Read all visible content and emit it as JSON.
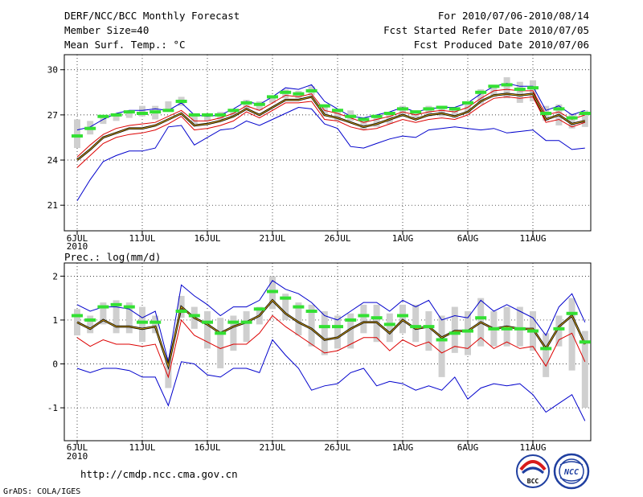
{
  "header": {
    "title": "DERF/NCC/BCC Monthly Forecast",
    "member_size": "Member Size=40",
    "variable": "Mean Surf. Temp.: °C",
    "forecast_period": "For 2010/07/06-2010/08/14",
    "start_ref_date": "Fcst Started Refer Date 2010/07/05",
    "produced_date": "Fcst Produced Date 2010/07/06"
  },
  "footer": {
    "url": "http://cmdp.ncc.cma.gov.cn",
    "grads_credit": "GrADS: COLA/IGES",
    "logo_bcc_text": "BCC",
    "logo_ncc_text": "NCC"
  },
  "x_axis": {
    "tick_labels": [
      "6JUL",
      "11JUL",
      "16JUL",
      "21JUL",
      "26JUL",
      "1AUG",
      "6AUG",
      "11AUG"
    ],
    "year_label": "2010"
  },
  "colors": {
    "box": "#cfcfcf",
    "member_mean": "#000000",
    "ensemble_mean": "#d4a017",
    "observed_marker": "#33e033",
    "upper_blue": "#0000cc",
    "lower_red": "#dd0000",
    "lower_blue": "#0000cc"
  },
  "chart_data": [
    {
      "type": "line",
      "title": "Mean Surf. Temp.: °C",
      "days": 40,
      "ylim": [
        19.3,
        31
      ],
      "yticks": [
        21,
        24,
        27,
        30
      ],
      "y_tick_labels": [
        "21",
        "24",
        "27",
        "30"
      ],
      "grid": true,
      "series": [
        {
          "name": "upper_blue",
          "values": [
            26.0,
            26.2,
            26.7,
            27.1,
            27.3,
            27.3,
            27.4,
            27.3,
            27.8,
            27.0,
            26.9,
            27.0,
            27.4,
            27.9,
            27.7,
            28.2,
            28.8,
            28.7,
            29.0,
            27.9,
            27.4,
            26.9,
            26.8,
            27.0,
            27.2,
            27.5,
            27.2,
            27.4,
            27.5,
            27.5,
            27.8,
            28.4,
            28.9,
            29.1,
            28.9,
            28.9,
            27.3,
            27.6,
            27.0,
            27.3
          ]
        },
        {
          "name": "upper_red",
          "values": [
            24.2,
            25.0,
            25.7,
            26.1,
            26.3,
            26.4,
            26.5,
            26.9,
            27.3,
            26.6,
            26.6,
            26.8,
            27.1,
            27.6,
            27.3,
            27.8,
            28.3,
            28.2,
            28.4,
            27.3,
            27.1,
            26.8,
            26.5,
            26.7,
            26.9,
            27.2,
            27.0,
            27.2,
            27.3,
            27.2,
            27.5,
            28.1,
            28.6,
            28.7,
            28.6,
            28.6,
            27.0,
            27.2,
            26.7,
            27.0
          ]
        },
        {
          "name": "mean_black",
          "values": [
            24.0,
            24.7,
            25.5,
            25.8,
            26.1,
            26.1,
            26.3,
            26.7,
            27.1,
            26.3,
            26.4,
            26.6,
            26.9,
            27.4,
            27.0,
            27.5,
            28.0,
            28.0,
            28.2,
            27.0,
            26.8,
            26.5,
            26.2,
            26.4,
            26.7,
            27.0,
            26.7,
            27.0,
            27.1,
            26.9,
            27.2,
            27.9,
            28.3,
            28.4,
            28.3,
            28.4,
            26.7,
            27.0,
            26.4,
            26.6
          ]
        },
        {
          "name": "mean_yellow",
          "values": [
            24.0,
            24.7,
            25.5,
            25.8,
            26.1,
            26.1,
            26.3,
            26.7,
            27.1,
            26.3,
            26.4,
            26.6,
            26.9,
            27.4,
            27.0,
            27.5,
            28.0,
            28.0,
            28.2,
            27.0,
            26.8,
            26.5,
            26.2,
            26.4,
            26.7,
            27.0,
            26.7,
            27.0,
            27.1,
            26.9,
            27.2,
            27.9,
            28.3,
            28.4,
            28.3,
            28.4,
            26.7,
            27.0,
            26.4,
            26.6
          ]
        },
        {
          "name": "lower_red",
          "values": [
            23.5,
            24.3,
            25.1,
            25.5,
            25.7,
            25.8,
            26.0,
            26.4,
            26.9,
            26.0,
            26.1,
            26.3,
            26.6,
            27.2,
            26.8,
            27.3,
            27.8,
            27.8,
            27.9,
            26.7,
            26.6,
            26.2,
            26.0,
            26.1,
            26.4,
            26.7,
            26.5,
            26.7,
            26.8,
            26.7,
            27.0,
            27.6,
            28.1,
            28.2,
            28.1,
            28.2,
            26.5,
            26.7,
            26.2,
            26.5
          ]
        },
        {
          "name": "lower_blue",
          "values": [
            21.3,
            22.7,
            23.9,
            24.3,
            24.6,
            24.6,
            24.8,
            26.2,
            26.3,
            25.0,
            25.5,
            26.0,
            26.1,
            26.6,
            26.3,
            26.7,
            27.1,
            27.5,
            27.4,
            26.4,
            26.1,
            24.9,
            24.8,
            25.1,
            25.4,
            25.6,
            25.5,
            26.0,
            26.1,
            26.2,
            26.1,
            26.0,
            26.1,
            25.8,
            25.9,
            26.0,
            25.3,
            25.3,
            24.7,
            24.8
          ]
        }
      ],
      "boxes": [
        [
          24.8,
          26.7
        ],
        [
          25.7,
          26.6
        ],
        [
          26.4,
          26.9
        ],
        [
          26.6,
          27.1
        ],
        [
          26.8,
          27.2
        ],
        [
          26.9,
          27.6
        ],
        [
          26.7,
          27.6
        ],
        [
          27.2,
          27.9
        ],
        [
          27.6,
          28.2
        ],
        [
          26.4,
          26.9
        ],
        [
          26.6,
          27.0
        ],
        [
          26.7,
          27.2
        ],
        [
          26.9,
          27.3
        ],
        [
          27.4,
          28.0
        ],
        [
          27.3,
          27.9
        ],
        [
          27.8,
          28.3
        ],
        [
          28.1,
          28.7
        ],
        [
          28.1,
          28.6
        ],
        [
          28.3,
          28.9
        ],
        [
          26.9,
          27.6
        ],
        [
          26.6,
          27.4
        ],
        [
          26.6,
          27.3
        ],
        [
          26.0,
          26.8
        ],
        [
          26.2,
          26.9
        ],
        [
          26.4,
          27.1
        ],
        [
          26.9,
          27.6
        ],
        [
          26.7,
          27.3
        ],
        [
          26.9,
          27.6
        ],
        [
          26.9,
          27.6
        ],
        [
          26.8,
          27.5
        ],
        [
          27.1,
          27.8
        ],
        [
          27.7,
          28.7
        ],
        [
          28.2,
          29.0
        ],
        [
          28.1,
          29.5
        ],
        [
          27.8,
          29.2
        ],
        [
          27.9,
          29.3
        ],
        [
          26.6,
          27.6
        ],
        [
          26.3,
          27.7
        ],
        [
          26.1,
          27.1
        ],
        [
          26.2,
          27.3
        ]
      ],
      "observed": [
        25.6,
        26.1,
        26.9,
        27.0,
        27.2,
        27.1,
        27.2,
        27.3,
        27.9,
        27.0,
        27.0,
        27.0,
        27.3,
        27.8,
        27.7,
        28.2,
        28.5,
        28.4,
        28.6,
        27.6,
        27.3,
        26.9,
        26.7,
        26.9,
        27.1,
        27.4,
        27.2,
        27.4,
        27.5,
        27.4,
        27.8,
        28.5,
        28.9,
        29.0,
        28.7,
        28.8,
        27.1,
        27.4,
        26.8,
        27.1
      ]
    },
    {
      "type": "line",
      "title": "Prec.: log(mm/d)",
      "days": 40,
      "ylim": [
        -1.75,
        2.3
      ],
      "yticks": [
        -1,
        0,
        1,
        2
      ],
      "y_tick_labels": [
        "-1",
        "0",
        "1",
        "2"
      ],
      "grid": true,
      "series": [
        {
          "name": "upper_blue",
          "values": [
            1.35,
            1.2,
            1.3,
            1.3,
            1.25,
            1.05,
            1.2,
            0.05,
            1.8,
            1.55,
            1.35,
            1.1,
            1.3,
            1.3,
            1.45,
            1.9,
            1.7,
            1.6,
            1.4,
            1.1,
            1.0,
            1.2,
            1.4,
            1.4,
            1.2,
            1.45,
            1.3,
            1.45,
            1.0,
            1.1,
            1.05,
            1.45,
            1.2,
            1.35,
            1.2,
            1.05,
            0.65,
            1.3,
            1.6,
            0.95
          ]
        },
        {
          "name": "mean_black",
          "values": [
            0.95,
            0.8,
            1.0,
            0.85,
            0.85,
            0.8,
            0.85,
            -0.05,
            1.3,
            1.05,
            0.9,
            0.7,
            0.85,
            0.95,
            1.1,
            1.45,
            1.15,
            0.95,
            0.8,
            0.55,
            0.6,
            0.8,
            0.95,
            0.95,
            0.7,
            1.0,
            0.8,
            0.85,
            0.6,
            0.75,
            0.75,
            0.95,
            0.8,
            0.85,
            0.8,
            0.8,
            0.35,
            0.85,
            1.1,
            0.45
          ]
        },
        {
          "name": "mean_yellow",
          "values": [
            0.95,
            0.8,
            1.0,
            0.85,
            0.85,
            0.8,
            0.85,
            -0.05,
            1.3,
            1.05,
            0.9,
            0.7,
            0.85,
            0.95,
            1.1,
            1.45,
            1.15,
            0.95,
            0.8,
            0.55,
            0.6,
            0.8,
            0.95,
            0.95,
            0.7,
            1.0,
            0.8,
            0.85,
            0.6,
            0.75,
            0.75,
            0.95,
            0.8,
            0.85,
            0.8,
            0.8,
            0.35,
            0.85,
            1.1,
            0.45
          ]
        },
        {
          "name": "lower_red",
          "values": [
            0.6,
            0.4,
            0.55,
            0.45,
            0.45,
            0.4,
            0.45,
            -0.3,
            1.0,
            0.65,
            0.5,
            0.35,
            0.45,
            0.45,
            0.7,
            1.1,
            0.85,
            0.65,
            0.45,
            0.25,
            0.3,
            0.45,
            0.6,
            0.6,
            0.3,
            0.55,
            0.4,
            0.5,
            0.25,
            0.4,
            0.35,
            0.6,
            0.35,
            0.5,
            0.35,
            0.4,
            -0.05,
            0.55,
            0.7,
            0.05
          ]
        },
        {
          "name": "lower_blue",
          "values": [
            -0.1,
            -0.2,
            -0.1,
            -0.1,
            -0.15,
            -0.3,
            -0.3,
            -0.95,
            0.05,
            0.0,
            -0.25,
            -0.3,
            -0.1,
            -0.1,
            -0.2,
            0.55,
            0.2,
            -0.1,
            -0.6,
            -0.5,
            -0.45,
            -0.2,
            -0.1,
            -0.5,
            -0.4,
            -0.45,
            -0.6,
            -0.5,
            -0.6,
            -0.3,
            -0.8,
            -0.55,
            -0.45,
            -0.5,
            -0.45,
            -0.7,
            -1.1,
            -0.9,
            -0.7,
            -1.3
          ]
        }
      ],
      "boxes": [
        [
          0.65,
          1.25
        ],
        [
          0.7,
          1.1
        ],
        [
          0.9,
          1.4
        ],
        [
          0.7,
          1.45
        ],
        [
          0.7,
          1.4
        ],
        [
          0.5,
          1.3
        ],
        [
          0.7,
          1.1
        ],
        [
          -0.55,
          0.15
        ],
        [
          1.05,
          1.55
        ],
        [
          0.8,
          1.3
        ],
        [
          0.35,
          1.2
        ],
        [
          -0.1,
          1.05
        ],
        [
          0.3,
          1.1
        ],
        [
          0.5,
          1.2
        ],
        [
          0.9,
          1.3
        ],
        [
          1.25,
          2.0
        ],
        [
          1.0,
          1.6
        ],
        [
          0.65,
          1.4
        ],
        [
          0.4,
          1.35
        ],
        [
          0.2,
          1.2
        ],
        [
          0.35,
          1.1
        ],
        [
          0.35,
          1.15
        ],
        [
          0.7,
          1.35
        ],
        [
          0.5,
          1.35
        ],
        [
          0.5,
          1.15
        ],
        [
          0.7,
          1.35
        ],
        [
          0.5,
          1.35
        ],
        [
          0.3,
          1.2
        ],
        [
          -0.3,
          1.1
        ],
        [
          0.25,
          1.3
        ],
        [
          0.2,
          1.2
        ],
        [
          0.4,
          1.5
        ],
        [
          0.4,
          1.2
        ],
        [
          0.4,
          1.3
        ],
        [
          0.4,
          1.3
        ],
        [
          0.3,
          1.2
        ],
        [
          -0.3,
          0.7
        ],
        [
          0.4,
          1.1
        ],
        [
          -0.15,
          1.5
        ],
        [
          -1.0,
          0.75
        ]
      ],
      "observed": [
        1.1,
        1.0,
        1.3,
        1.35,
        1.3,
        0.95,
        0.95,
        null,
        1.2,
        1.1,
        0.95,
        0.7,
        0.95,
        0.95,
        1.25,
        1.65,
        1.5,
        1.3,
        1.2,
        0.85,
        0.85,
        1.0,
        1.1,
        1.05,
        0.9,
        1.1,
        0.85,
        0.85,
        0.55,
        0.7,
        0.75,
        1.05,
        0.8,
        0.8,
        0.8,
        0.75,
        0.35,
        0.8,
        1.15,
        0.5
      ]
    }
  ]
}
